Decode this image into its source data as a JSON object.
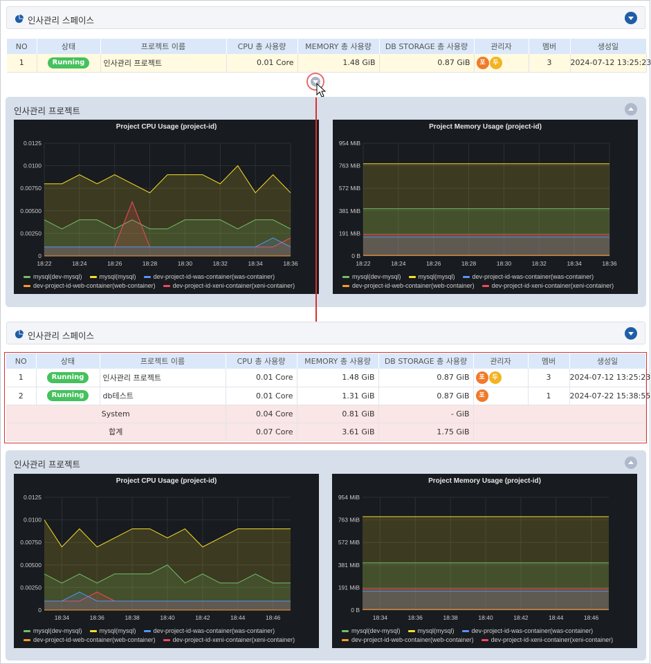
{
  "space_title": "인사관리 스페이스",
  "columns": [
    "NO",
    "상태",
    "프로젝트 이름",
    "CPU 총 사용량",
    "MEMORY 총 사용량",
    "DB STORAGE 총 사용량",
    "관리자",
    "멤버",
    "생성일"
  ],
  "table1": {
    "rows": [
      {
        "no": "1",
        "status": "Running",
        "name": "인사관리 프로젝트",
        "cpu": "0.01 Core",
        "mem": "1.48 GiB",
        "db": "0.87 GiB",
        "admins": [
          {
            "t": "포",
            "c": "#f07a2a"
          },
          {
            "t": "두",
            "c": "#f3b321"
          }
        ],
        "members": "3",
        "created": "2024-07-12 13:25:23"
      }
    ]
  },
  "table2": {
    "rows": [
      {
        "no": "1",
        "status": "Running",
        "name": "인사관리 프로젝트",
        "cpu": "0.01 Core",
        "mem": "1.48 GiB",
        "db": "0.87 GiB",
        "admins": [
          {
            "t": "포",
            "c": "#f07a2a"
          },
          {
            "t": "두",
            "c": "#f3b321"
          }
        ],
        "members": "3",
        "created": "2024-07-12 13:25:23"
      },
      {
        "no": "2",
        "status": "Running",
        "name": "db테스트",
        "cpu": "0.01 Core",
        "mem": "1.31 GiB",
        "db": "0.87 GiB",
        "admins": [
          {
            "t": "포",
            "c": "#f07a2a"
          }
        ],
        "members": "1",
        "created": "2024-07-22 15:38:55"
      }
    ],
    "summary": [
      {
        "label": "System",
        "cpu": "0.04 Core",
        "mem": "0.81 GiB",
        "db": "- GiB"
      },
      {
        "label": "합계",
        "cpu": "0.07 Core",
        "mem": "3.61 GiB",
        "db": "1.75 GiB"
      }
    ]
  },
  "project_panel_title": "인사관리 프로젝트",
  "series_colors": {
    "mysql(dev-mysql)": "#73bf69",
    "mysql(mysql)": "#fade2a",
    "dev-project-id-was-container(was-container)": "#5794f2",
    "dev-project-id-web-container(web-container)": "#ff9830",
    "dev-project-id-xeni-container(xeni-container)": "#f2495c"
  },
  "chart_data": [
    {
      "type": "area",
      "title": "Project CPU Usage (project-id)",
      "x": [
        "18:22",
        "18:23",
        "18:24",
        "18:25",
        "18:26",
        "18:27",
        "18:28",
        "18:29",
        "18:30",
        "18:31",
        "18:32",
        "18:33",
        "18:34",
        "18:35",
        "18:36"
      ],
      "yticks": [
        "0.0125",
        "0.0100",
        "0.00750",
        "0.00500",
        "0.00250",
        "0"
      ],
      "ylim": [
        0,
        0.0125
      ],
      "xticks": [
        "18:22",
        "18:24",
        "18:26",
        "18:28",
        "18:30",
        "18:32",
        "18:34",
        "18:36"
      ],
      "series": [
        {
          "name": "mysql(mysql)",
          "values": [
            0.008,
            0.008,
            0.009,
            0.008,
            0.009,
            0.008,
            0.007,
            0.009,
            0.009,
            0.009,
            0.008,
            0.01,
            0.007,
            0.009,
            0.007
          ]
        },
        {
          "name": "mysql(dev-mysql)",
          "values": [
            0.004,
            0.003,
            0.004,
            0.004,
            0.003,
            0.004,
            0.003,
            0.003,
            0.004,
            0.004,
            0.004,
            0.003,
            0.004,
            0.004,
            0.003
          ]
        },
        {
          "name": "dev-project-id-xeni-container(xeni-container)",
          "values": [
            0.001,
            0.001,
            0.001,
            0.001,
            0.001,
            0.006,
            0.001,
            0.001,
            0.001,
            0.001,
            0.001,
            0.001,
            0.001,
            0.001,
            0.002
          ]
        },
        {
          "name": "dev-project-id-was-container(was-container)",
          "values": [
            0.001,
            0.001,
            0.001,
            0.001,
            0.001,
            0.001,
            0.001,
            0.001,
            0.001,
            0.001,
            0.001,
            0.001,
            0.001,
            0.002,
            0.001
          ]
        },
        {
          "name": "dev-project-id-web-container(web-container)",
          "values": [
            0,
            0,
            0,
            0,
            0,
            0,
            0,
            0,
            0,
            0,
            0,
            0,
            0,
            0,
            0
          ]
        }
      ]
    },
    {
      "type": "area",
      "title": "Project Memory Usage (project-id)",
      "x": [
        "18:22",
        "18:36"
      ],
      "yticks": [
        "954 MiB",
        "763 MiB",
        "572 MiB",
        "381 MiB",
        "191 MiB",
        "0 B"
      ],
      "ylim": [
        0,
        954
      ],
      "xticks": [
        "18:22",
        "18:24",
        "18:26",
        "18:28",
        "18:30",
        "18:32",
        "18:34",
        "18:36"
      ],
      "series": [
        {
          "name": "mysql(mysql)",
          "values": [
            780,
            780
          ]
        },
        {
          "name": "mysql(dev-mysql)",
          "values": [
            400,
            400
          ]
        },
        {
          "name": "dev-project-id-xeni-container(xeni-container)",
          "values": [
            180,
            180
          ]
        },
        {
          "name": "dev-project-id-was-container(was-container)",
          "values": [
            160,
            160
          ]
        },
        {
          "name": "dev-project-id-web-container(web-container)",
          "values": [
            5,
            5
          ]
        }
      ]
    },
    {
      "type": "area",
      "title": "Project CPU Usage (project-id)",
      "x": [
        "18:33",
        "18:34",
        "18:35",
        "18:36",
        "18:37",
        "18:38",
        "18:39",
        "18:40",
        "18:41",
        "18:42",
        "18:43",
        "18:44",
        "18:45",
        "18:46",
        "18:47"
      ],
      "yticks": [
        "0.0125",
        "0.0100",
        "0.00750",
        "0.00500",
        "0.00250",
        "0"
      ],
      "ylim": [
        0,
        0.0125
      ],
      "xticks": [
        "18:34",
        "18:36",
        "18:38",
        "18:40",
        "18:42",
        "18:44",
        "18:46"
      ],
      "series": [
        {
          "name": "mysql(mysql)",
          "values": [
            0.01,
            0.007,
            0.009,
            0.007,
            0.008,
            0.009,
            0.009,
            0.008,
            0.009,
            0.007,
            0.008,
            0.009,
            0.009,
            0.009,
            0.009
          ]
        },
        {
          "name": "mysql(dev-mysql)",
          "values": [
            0.004,
            0.003,
            0.004,
            0.003,
            0.004,
            0.004,
            0.004,
            0.005,
            0.003,
            0.004,
            0.003,
            0.003,
            0.004,
            0.003,
            0.003
          ]
        },
        {
          "name": "dev-project-id-xeni-container(xeni-container)",
          "values": [
            0.001,
            0.001,
            0.001,
            0.002,
            0.001,
            0.001,
            0.001,
            0.001,
            0.001,
            0.001,
            0.001,
            0.001,
            0.001,
            0.001,
            0.001
          ]
        },
        {
          "name": "dev-project-id-was-container(was-container)",
          "values": [
            0.001,
            0.001,
            0.002,
            0.001,
            0.001,
            0.001,
            0.001,
            0.001,
            0.001,
            0.001,
            0.001,
            0.001,
            0.001,
            0.001,
            0.001
          ]
        },
        {
          "name": "dev-project-id-web-container(web-container)",
          "values": [
            0,
            0,
            0,
            0,
            0,
            0,
            0,
            0,
            0,
            0,
            0,
            0,
            0,
            0,
            0
          ]
        }
      ]
    },
    {
      "type": "area",
      "title": "Project Memory Usage (project-id)",
      "x": [
        "18:33",
        "18:47"
      ],
      "yticks": [
        "954 MiB",
        "763 MiB",
        "572 MiB",
        "381 MiB",
        "191 MiB",
        "0 B"
      ],
      "ylim": [
        0,
        954
      ],
      "xticks": [
        "18:34",
        "18:36",
        "18:38",
        "18:40",
        "18:42",
        "18:44",
        "18:46"
      ],
      "series": [
        {
          "name": "mysql(mysql)",
          "values": [
            790,
            790
          ]
        },
        {
          "name": "mysql(dev-mysql)",
          "values": [
            400,
            400
          ]
        },
        {
          "name": "dev-project-id-xeni-container(xeni-container)",
          "values": [
            180,
            180
          ]
        },
        {
          "name": "dev-project-id-was-container(was-container)",
          "values": [
            160,
            160
          ]
        },
        {
          "name": "dev-project-id-web-container(web-container)",
          "values": [
            5,
            5
          ]
        }
      ]
    }
  ],
  "legend": [
    "mysql(dev-mysql)",
    "mysql(mysql)",
    "dev-project-id-was-container(was-container)",
    "dev-project-id-web-container(web-container)",
    "dev-project-id-xeni-container(xeni-container)"
  ]
}
